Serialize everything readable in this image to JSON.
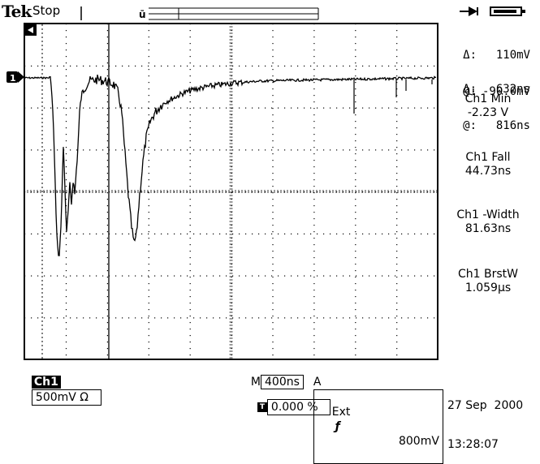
{
  "header": {
    "brand": "Tek",
    "status": "Stop"
  },
  "cursor_readout": {
    "delta1_label": "Δ:",
    "delta1_value": "110mV",
    "at1_label": "@:",
    "at1_value": "-90.0mV",
    "delta2_label": "Δ:",
    "delta2_value": "632ns",
    "at2_label": "@:",
    "at2_value": "816ns"
  },
  "measurements": [
    {
      "title": "Ch1 Min",
      "value": "-2.23 V"
    },
    {
      "title": "Ch1 Fall",
      "value": "44.73ns"
    },
    {
      "title": "Ch1 -Width",
      "value": "81.63ns"
    },
    {
      "title": "Ch1 BrstW",
      "value": "1.059µs"
    }
  ],
  "bottom_bar": {
    "channel": "Ch1",
    "volts_div": "500mV Ω",
    "m_label": "M",
    "timebase": "400ns",
    "a_label": "A",
    "trigger_source": "Ext",
    "trigger_slope": "ƒ",
    "trigger_level": "800mV",
    "trigger_position": "0.000 %"
  },
  "timestamp": {
    "date": "27 Sep  2000",
    "time": "13:28:07"
  },
  "markers": {
    "channel_marker": "1",
    "trigger_marker": "T"
  },
  "colors": {
    "trace": "#000000",
    "background": "#ffffff"
  }
}
